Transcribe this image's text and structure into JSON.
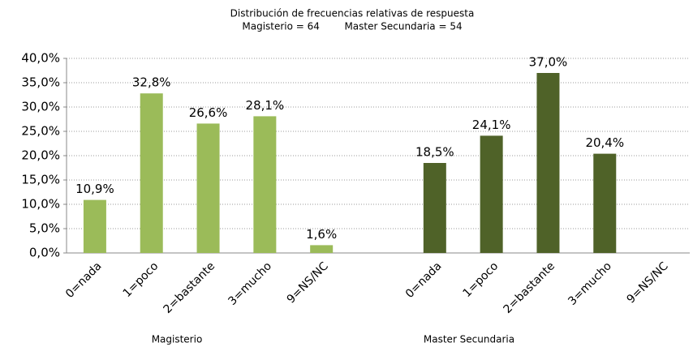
{
  "chart_data": {
    "type": "bar",
    "title": "Distribución de frecuencias relativas de respuesta",
    "subtitle": "Magisterio = 64        Master Secundaria = 54",
    "categories": [
      "0=nada",
      "1=poco",
      "2=bastante",
      "3=mucho",
      "9=NS/NC",
      null,
      "0=nada",
      "1=poco",
      "2=bastante",
      "3=mucho",
      "9=NS/NC"
    ],
    "series": [
      {
        "name": "Magisterio",
        "color": "#9bbb59",
        "values": [
          10.9,
          32.8,
          26.6,
          28.1,
          1.6,
          null,
          null,
          null,
          null,
          null,
          null
        ],
        "value_labels": [
          "10,9%",
          "32,8%",
          "26,6%",
          "28,1%",
          "1,6%",
          null,
          null,
          null,
          null,
          null,
          null
        ]
      },
      {
        "name": "Master Secundaria",
        "color": "#4f6228",
        "values": [
          null,
          null,
          null,
          null,
          null,
          null,
          18.5,
          24.1,
          37.0,
          20.4,
          null
        ],
        "value_labels": [
          null,
          null,
          null,
          null,
          null,
          null,
          "18,5%",
          "24,1%",
          "37,0%",
          "20,4%",
          null
        ]
      }
    ],
    "ylim": [
      0,
      40
    ],
    "yticks": [
      {
        "value": 0,
        "label": "0,0%"
      },
      {
        "value": 5,
        "label": "5,0%"
      },
      {
        "value": 10,
        "label": "10,0%"
      },
      {
        "value": 15,
        "label": "15,0%"
      },
      {
        "value": 20,
        "label": "20,0%"
      },
      {
        "value": 25,
        "label": "25,0%"
      },
      {
        "value": 30,
        "label": "30,0%"
      },
      {
        "value": 35,
        "label": "35,0%"
      },
      {
        "value": 40,
        "label": "40,0%"
      }
    ],
    "grid": true
  }
}
